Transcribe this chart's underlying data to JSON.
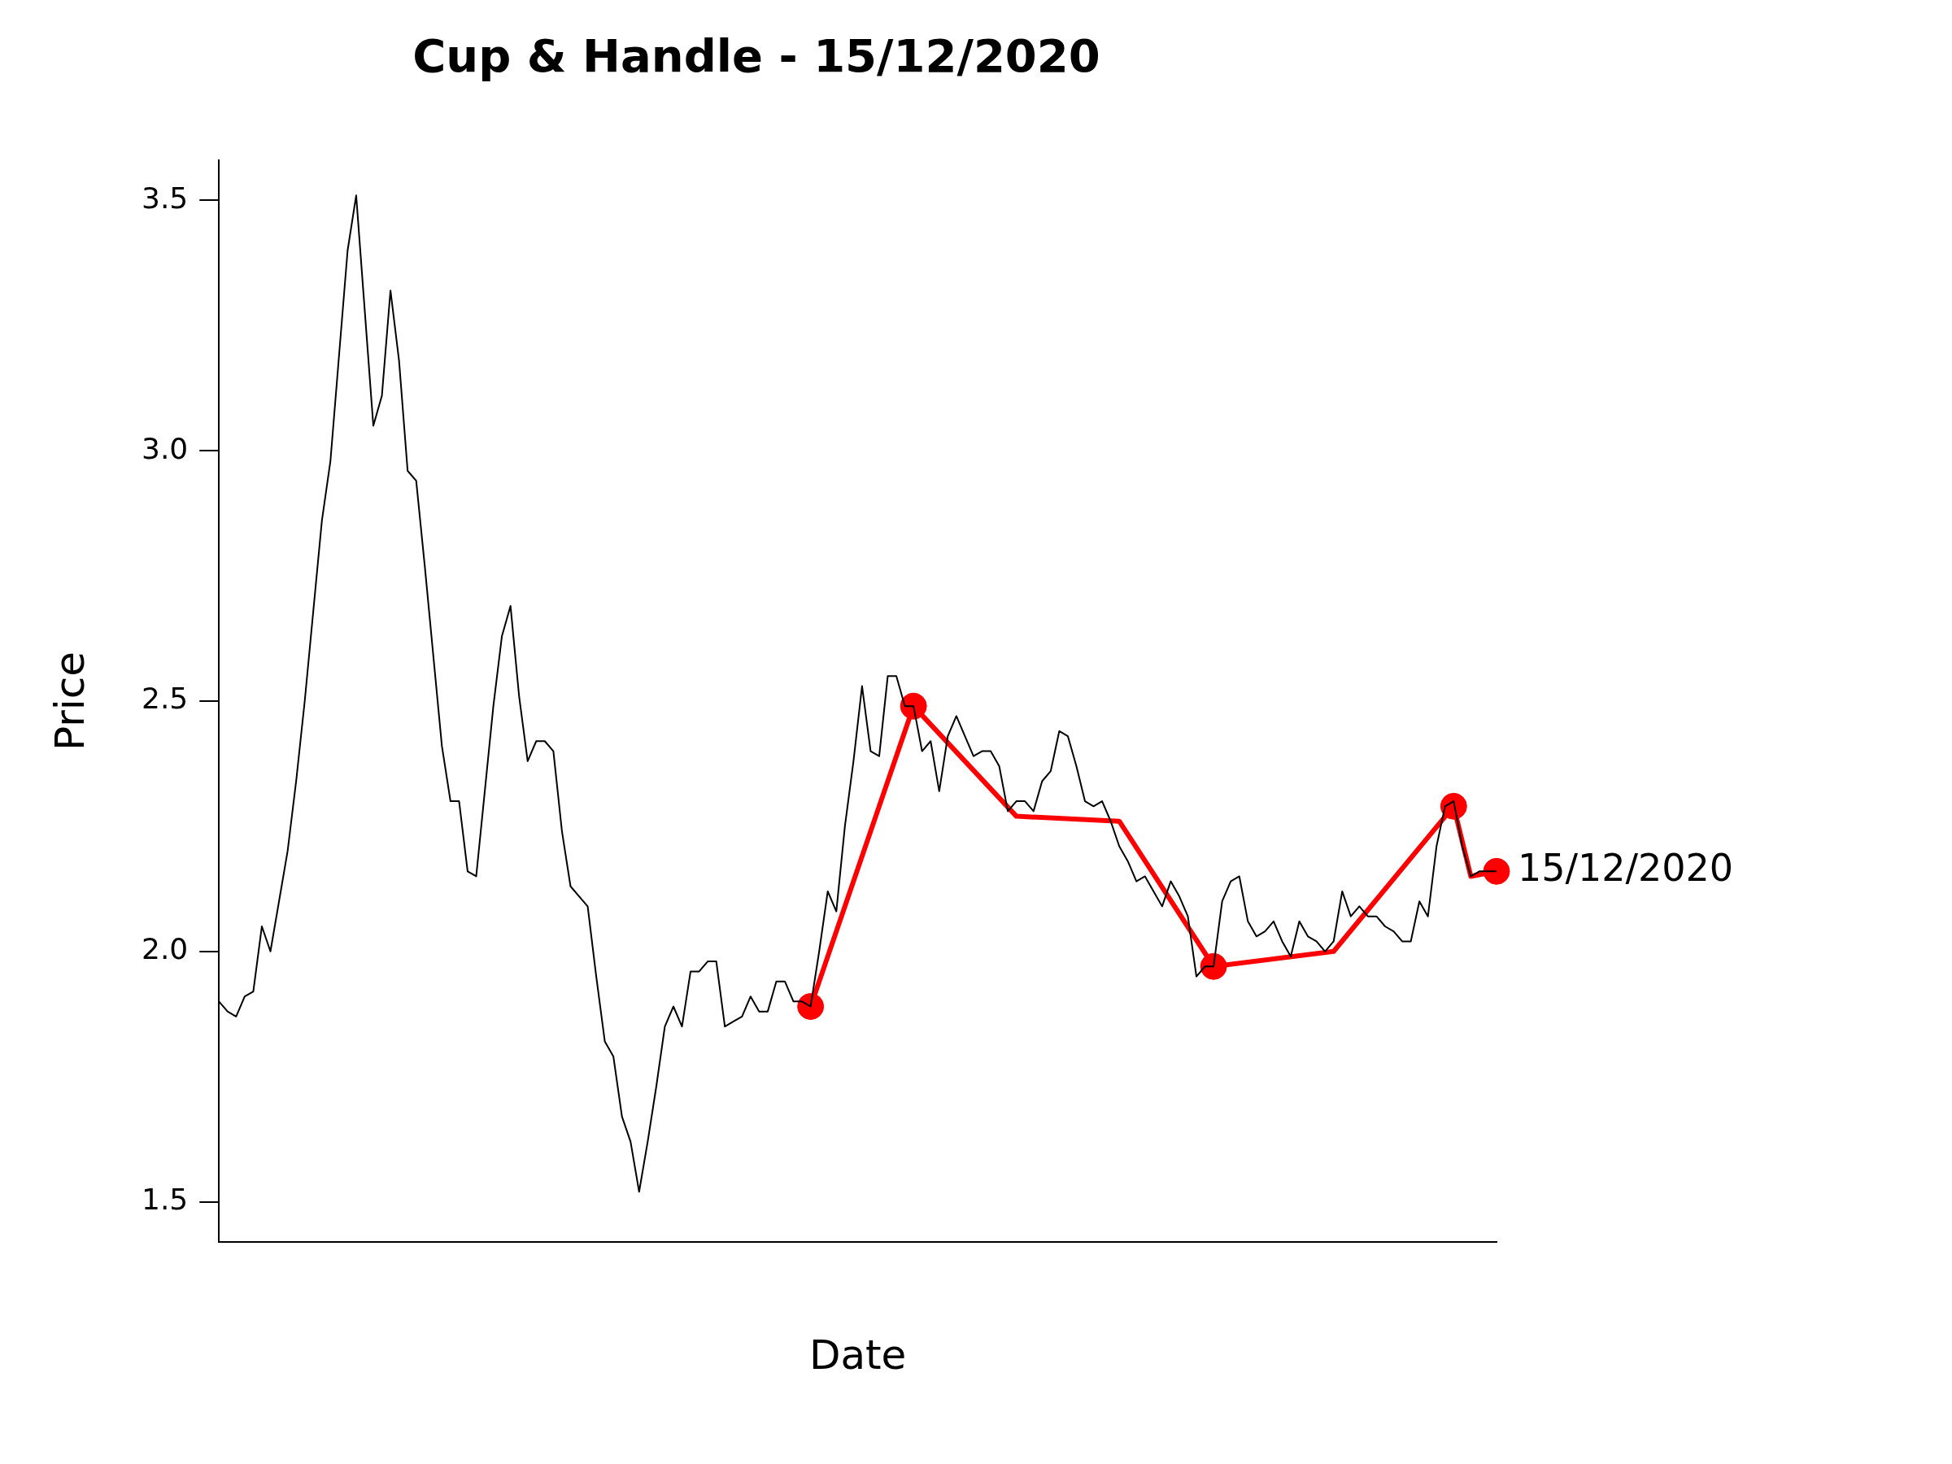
{
  "chart_data": {
    "type": "line",
    "title": "Cup & Handle - 15/12/2020",
    "xlabel": "Date",
    "ylabel": "Price",
    "categories": [
      null,
      null,
      null,
      null,
      null,
      null,
      null,
      null,
      null,
      null,
      null,
      null,
      null,
      null,
      null,
      null,
      null,
      null,
      null,
      null,
      null,
      null,
      null,
      null,
      null,
      null,
      null,
      null,
      null,
      null,
      null,
      null,
      null,
      null,
      null,
      null,
      null,
      null,
      null,
      null,
      null,
      null,
      null,
      null,
      null,
      null,
      null,
      null,
      null,
      null,
      null,
      null,
      null,
      null,
      null,
      null,
      null,
      null,
      null,
      null,
      null,
      null,
      null,
      null,
      null,
      null,
      null,
      null,
      null,
      null,
      null,
      null,
      null,
      null,
      null,
      null,
      null,
      null,
      null,
      null,
      null,
      null,
      null,
      null,
      null,
      null,
      null,
      null,
      null,
      null,
      null,
      null,
      null,
      null,
      null,
      null,
      null,
      null,
      null,
      null,
      null,
      null,
      null,
      null,
      null,
      null,
      null,
      null,
      null,
      null,
      null,
      null,
      null,
      null,
      null,
      null,
      null,
      null,
      null,
      null,
      null,
      null,
      null,
      null,
      null,
      null,
      null,
      null,
      null,
      null,
      null,
      null,
      null,
      null,
      null,
      null,
      null,
      null,
      null,
      null,
      null,
      null,
      null,
      null,
      null,
      null,
      null,
      null,
      null,
      null
    ],
    "series": [
      {
        "type": "line",
        "color": "#000000",
        "marker": "none",
        "values": [
          1.9,
          1.88,
          1.87,
          1.91,
          1.92,
          2.05,
          2.0,
          2.1,
          2.2,
          2.34,
          2.5,
          2.68,
          2.86,
          2.98,
          3.19,
          3.4,
          3.51,
          3.28,
          3.05,
          3.11,
          3.32,
          3.18,
          2.96,
          2.94,
          2.77,
          2.59,
          2.41,
          2.3,
          2.3,
          2.16,
          2.15,
          2.32,
          2.49,
          2.63,
          2.69,
          2.51,
          2.38,
          2.42,
          2.42,
          2.4,
          2.24,
          2.13,
          2.11,
          2.09,
          1.95,
          1.82,
          1.79,
          1.67,
          1.62,
          1.52,
          1.62,
          1.73,
          1.85,
          1.89,
          1.85,
          1.96,
          1.96,
          1.98,
          1.98,
          1.85,
          1.86,
          1.87,
          1.91,
          1.88,
          1.88,
          1.94,
          1.94,
          1.9,
          1.9,
          1.89,
          2.0,
          2.12,
          2.08,
          2.25,
          2.38,
          2.53,
          2.4,
          2.39,
          2.55,
          2.55,
          2.49,
          2.49,
          2.4,
          2.42,
          2.32,
          2.43,
          2.47,
          2.43,
          2.39,
          2.4,
          2.4,
          2.37,
          2.28,
          2.3,
          2.3,
          2.28,
          2.34,
          2.36,
          2.44,
          2.43,
          2.37,
          2.3,
          2.29,
          2.3,
          2.26,
          2.21,
          2.18,
          2.14,
          2.15,
          2.12,
          2.09,
          2.14,
          2.11,
          2.07,
          1.95,
          1.97,
          1.97,
          2.1,
          2.14,
          2.15,
          2.06,
          2.03,
          2.04,
          2.06,
          2.02,
          1.99,
          2.06,
          2.03,
          2.02,
          2.0,
          2.02,
          2.12,
          2.07,
          2.09,
          2.07,
          2.07,
          2.05,
          2.04,
          2.02,
          2.02,
          2.1,
          2.07,
          2.21,
          2.29,
          2.3,
          2.21,
          2.15,
          2.16,
          2.16,
          2.16
        ]
      },
      {
        "type": "line",
        "color": "#ff0000",
        "marker": "none",
        "values": [
          null,
          null,
          null,
          null,
          null,
          null,
          null,
          null,
          null,
          null,
          null,
          null,
          null,
          null,
          null,
          null,
          null,
          null,
          null,
          null,
          null,
          null,
          null,
          null,
          null,
          null,
          null,
          null,
          null,
          null,
          null,
          null,
          null,
          null,
          null,
          null,
          null,
          null,
          null,
          null,
          null,
          null,
          null,
          null,
          null,
          null,
          null,
          null,
          null,
          null,
          null,
          null,
          null,
          null,
          null,
          null,
          null,
          null,
          null,
          null,
          null,
          null,
          null,
          null,
          null,
          null,
          null,
          null,
          null,
          1.89,
          null,
          null,
          null,
          null,
          null,
          null,
          null,
          null,
          null,
          null,
          null,
          2.49,
          null,
          null,
          null,
          null,
          null,
          null,
          null,
          null,
          null,
          null,
          null,
          2.27,
          null,
          null,
          null,
          null,
          null,
          null,
          null,
          null,
          null,
          null,
          null,
          2.26,
          null,
          null,
          null,
          null,
          null,
          null,
          null,
          null,
          null,
          null,
          1.97,
          null,
          null,
          null,
          null,
          null,
          null,
          null,
          null,
          null,
          null,
          null,
          null,
          null,
          2.0,
          null,
          null,
          null,
          null,
          null,
          null,
          null,
          null,
          null,
          null,
          null,
          null,
          null,
          2.29,
          null,
          2.15,
          null,
          null,
          2.16
        ]
      },
      {
        "type": "scatter",
        "color": "#ff0000",
        "marker": "circle",
        "values": [
          null,
          null,
          null,
          null,
          null,
          null,
          null,
          null,
          null,
          null,
          null,
          null,
          null,
          null,
          null,
          null,
          null,
          null,
          null,
          null,
          null,
          null,
          null,
          null,
          null,
          null,
          null,
          null,
          null,
          null,
          null,
          null,
          null,
          null,
          null,
          null,
          null,
          null,
          null,
          null,
          null,
          null,
          null,
          null,
          null,
          null,
          null,
          null,
          null,
          null,
          null,
          null,
          null,
          null,
          null,
          null,
          null,
          null,
          null,
          null,
          null,
          null,
          null,
          null,
          null,
          null,
          null,
          null,
          null,
          1.89,
          null,
          null,
          null,
          null,
          null,
          null,
          null,
          null,
          null,
          null,
          null,
          2.49,
          null,
          null,
          null,
          null,
          null,
          null,
          null,
          null,
          null,
          null,
          null,
          null,
          null,
          null,
          null,
          null,
          null,
          null,
          null,
          null,
          null,
          null,
          null,
          null,
          null,
          null,
          null,
          null,
          null,
          null,
          null,
          null,
          null,
          null,
          1.97,
          null,
          null,
          null,
          null,
          null,
          null,
          null,
          null,
          null,
          null,
          null,
          null,
          null,
          null,
          null,
          null,
          null,
          null,
          null,
          null,
          null,
          null,
          null,
          null,
          null,
          null,
          null,
          2.29,
          null,
          null,
          null,
          null,
          2.16
        ]
      }
    ],
    "ylim": [
      1.42,
      3.58
    ],
    "yticks": [
      1.5,
      {
        "value": 2,
        "label": "2.0"
      },
      2.5,
      {
        "value": 3,
        "label": "3.0"
      },
      3.5
    ],
    "annotations": [
      "15/12/2020"
    ],
    "legend": false
  }
}
